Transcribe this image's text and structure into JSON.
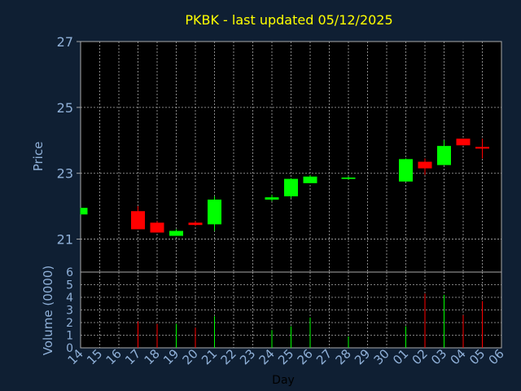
{
  "chart_data": {
    "type": "candlestick",
    "title": "PKBK - last updated 05/12/2025",
    "ylabel": "Price",
    "volume_label": "Volume (0000)",
    "xlabel": "Day",
    "ylim": [
      20,
      27
    ],
    "price_ticks": [
      "27",
      "25",
      "23",
      "21"
    ],
    "volume_ylim": [
      0,
      6
    ],
    "volume_ticks": [
      "6",
      "5",
      "4",
      "3",
      "2",
      "1",
      "0"
    ],
    "x_tick_labels": [
      "14",
      "15",
      "16",
      "17",
      "18",
      "19",
      "20",
      "21",
      "22",
      "23",
      "24",
      "25",
      "26",
      "27",
      "28",
      "29",
      "30",
      "01",
      "02",
      "03",
      "04",
      "05",
      "06"
    ],
    "grid": true,
    "colors": {
      "up": "#00ff00",
      "down": "#ff0000",
      "background": "#0f1f33",
      "plot_background": "#000000",
      "grid": "#aaaaaa",
      "title": "#ffff00",
      "axis_text": "#8fb0d8"
    },
    "candles": [
      {
        "day": "14",
        "open": 21.75,
        "high": 21.95,
        "low": 21.75,
        "close": 21.95,
        "volume": 0
      },
      {
        "day": "17",
        "open": 21.85,
        "high": 22.0,
        "low": 21.3,
        "close": 21.3,
        "volume": 2.1
      },
      {
        "day": "18",
        "open": 21.5,
        "high": 21.55,
        "low": 21.2,
        "close": 21.2,
        "volume": 1.9
      },
      {
        "day": "19",
        "open": 21.1,
        "high": 21.3,
        "low": 21.1,
        "close": 21.25,
        "volume": 1.9
      },
      {
        "day": "20",
        "open": 21.5,
        "high": 21.55,
        "low": 21.4,
        "close": 21.43,
        "volume": 1.6
      },
      {
        "day": "21",
        "open": 21.45,
        "high": 22.3,
        "low": 21.25,
        "close": 22.2,
        "volume": 2.5
      },
      {
        "day": "24",
        "open": 22.2,
        "high": 22.35,
        "low": 22.15,
        "close": 22.27,
        "volume": 1.4
      },
      {
        "day": "25",
        "open": 22.3,
        "high": 22.85,
        "low": 22.25,
        "close": 22.83,
        "volume": 1.7
      },
      {
        "day": "26",
        "open": 22.7,
        "high": 22.95,
        "low": 22.7,
        "close": 22.9,
        "volume": 2.4
      },
      {
        "day": "28",
        "open": 22.83,
        "high": 22.9,
        "low": 22.8,
        "close": 22.87,
        "volume": 0.9
      },
      {
        "day": "01",
        "open": 22.75,
        "high": 23.45,
        "low": 22.75,
        "close": 23.43,
        "volume": 1.7
      },
      {
        "day": "02",
        "open": 23.35,
        "high": 23.45,
        "low": 22.95,
        "close": 23.15,
        "volume": 4.3
      },
      {
        "day": "03",
        "open": 23.25,
        "high": 24.0,
        "low": 23.25,
        "close": 23.83,
        "volume": 4.2
      },
      {
        "day": "04",
        "open": 24.05,
        "high": 24.05,
        "low": 23.85,
        "close": 23.85,
        "volume": 2.6
      },
      {
        "day": "05",
        "open": 23.8,
        "high": 24.05,
        "low": 23.45,
        "close": 23.75,
        "volume": 3.7
      }
    ]
  }
}
